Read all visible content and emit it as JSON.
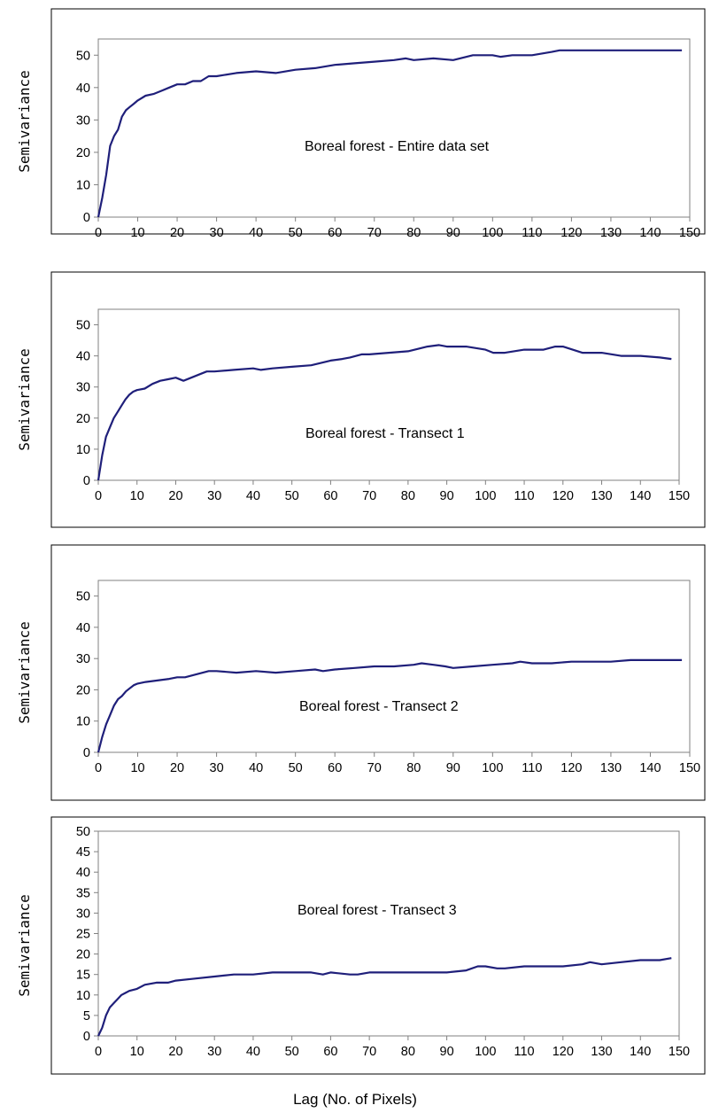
{
  "figure": {
    "xlabel": "Lag (No. of Pixels)"
  },
  "chart_data": [
    {
      "type": "line",
      "title": "Boreal forest - Entire data set",
      "ylabel": "Semivariance",
      "xlim": [
        0,
        150
      ],
      "ylim": [
        0,
        55
      ],
      "xticks": [
        0,
        10,
        20,
        30,
        40,
        50,
        60,
        70,
        80,
        90,
        100,
        110,
        120,
        130,
        140,
        150
      ],
      "yticks": [
        0,
        10,
        20,
        30,
        40,
        50
      ],
      "grid": false,
      "color": "#1f1f7a",
      "x": [
        0,
        1,
        2,
        3,
        4,
        5,
        6,
        7,
        8,
        9,
        10,
        12,
        14,
        16,
        18,
        20,
        22,
        24,
        26,
        28,
        30,
        35,
        40,
        45,
        50,
        55,
        60,
        65,
        70,
        75,
        78,
        80,
        85,
        90,
        95,
        100,
        102,
        105,
        110,
        115,
        117,
        120,
        125,
        130,
        135,
        140,
        145,
        148
      ],
      "y": [
        0,
        6,
        13,
        22,
        25,
        27,
        31,
        33,
        34,
        35,
        36,
        37.5,
        38,
        39,
        40,
        41,
        41,
        42,
        42,
        43.5,
        43.5,
        44.5,
        45,
        44.5,
        45.5,
        46,
        47,
        47.5,
        48,
        48.5,
        49,
        48.5,
        49,
        48.5,
        50,
        50,
        49.5,
        50,
        50,
        51,
        51.5,
        51.5,
        51.5,
        51.5,
        51.5,
        51.5,
        51.5,
        51.5
      ]
    },
    {
      "type": "line",
      "title": "Boreal forest - Transect 1",
      "ylabel": "Semivariance",
      "xlim": [
        0,
        150
      ],
      "ylim": [
        0,
        55
      ],
      "xticks": [
        0,
        10,
        20,
        30,
        40,
        50,
        60,
        70,
        80,
        90,
        100,
        110,
        120,
        130,
        140,
        150
      ],
      "yticks": [
        0,
        10,
        20,
        30,
        40,
        50
      ],
      "grid": false,
      "color": "#1f1f7a",
      "x": [
        0,
        1,
        2,
        3,
        4,
        5,
        6,
        7,
        8,
        9,
        10,
        12,
        14,
        16,
        18,
        20,
        22,
        24,
        26,
        28,
        30,
        35,
        40,
        42,
        45,
        50,
        55,
        60,
        63,
        65,
        68,
        70,
        75,
        80,
        85,
        88,
        90,
        95,
        100,
        102,
        105,
        110,
        115,
        118,
        120,
        125,
        130,
        135,
        140,
        145,
        148
      ],
      "y": [
        0,
        8,
        14,
        17,
        20,
        22,
        24,
        26,
        27.5,
        28.5,
        29,
        29.5,
        31,
        32,
        32.5,
        33,
        32,
        33,
        34,
        35,
        35,
        35.5,
        36,
        35.5,
        36,
        36.5,
        37,
        38.5,
        39,
        39.5,
        40.5,
        40.5,
        41,
        41.5,
        43,
        43.5,
        43,
        43,
        42,
        41,
        41,
        42,
        42,
        43,
        43,
        41,
        41,
        40,
        40,
        39.5,
        39
      ]
    },
    {
      "type": "line",
      "title": "Boreal forest - Transect 2",
      "ylabel": "Semivariance",
      "xlim": [
        0,
        150
      ],
      "ylim": [
        0,
        55
      ],
      "xticks": [
        0,
        10,
        20,
        30,
        40,
        50,
        60,
        70,
        80,
        90,
        100,
        110,
        120,
        130,
        140,
        150
      ],
      "yticks": [
        0,
        10,
        20,
        30,
        40,
        50
      ],
      "grid": false,
      "color": "#1f1f7a",
      "x": [
        0,
        1,
        2,
        3,
        4,
        5,
        6,
        7,
        8,
        9,
        10,
        12,
        15,
        18,
        20,
        22,
        25,
        28,
        30,
        35,
        40,
        45,
        50,
        55,
        57,
        60,
        65,
        70,
        75,
        80,
        82,
        85,
        88,
        90,
        95,
        100,
        105,
        107,
        110,
        115,
        120,
        125,
        130,
        135,
        140,
        148
      ],
      "y": [
        0,
        5,
        9,
        12,
        15,
        17,
        18,
        19.5,
        20.5,
        21.5,
        22,
        22.5,
        23,
        23.5,
        24,
        24,
        25,
        26,
        26,
        25.5,
        26,
        25.5,
        26,
        26.5,
        26,
        26.5,
        27,
        27.5,
        27.5,
        28,
        28.5,
        28,
        27.5,
        27,
        27.5,
        28,
        28.5,
        29,
        28.5,
        28.5,
        29,
        29,
        29,
        29.5,
        29.5,
        29.5
      ]
    },
    {
      "type": "line",
      "title": "Boreal forest - Transect 3",
      "ylabel": "Semivariance",
      "xlim": [
        0,
        150
      ],
      "ylim": [
        0,
        50
      ],
      "xticks": [
        0,
        10,
        20,
        30,
        40,
        50,
        60,
        70,
        80,
        90,
        100,
        110,
        120,
        130,
        140,
        150
      ],
      "yticks": [
        0,
        5,
        10,
        15,
        20,
        25,
        30,
        35,
        40,
        45,
        50
      ],
      "grid": false,
      "color": "#1f1f7a",
      "x": [
        0,
        1,
        2,
        3,
        4,
        5,
        6,
        7,
        8,
        10,
        12,
        15,
        18,
        20,
        25,
        30,
        35,
        40,
        45,
        50,
        55,
        58,
        60,
        65,
        67,
        70,
        75,
        80,
        85,
        90,
        95,
        98,
        100,
        103,
        105,
        110,
        115,
        120,
        125,
        127,
        130,
        135,
        140,
        145,
        148
      ],
      "y": [
        0,
        2,
        5,
        7,
        8,
        9,
        10,
        10.5,
        11,
        11.5,
        12.5,
        13,
        13,
        13.5,
        14,
        14.5,
        15,
        15,
        15.5,
        15.5,
        15.5,
        15,
        15.5,
        15,
        15,
        15.5,
        15.5,
        15.5,
        15.5,
        15.5,
        16,
        17,
        17,
        16.5,
        16.5,
        17,
        17,
        17,
        17.5,
        18,
        17.5,
        18,
        18.5,
        18.5,
        19
      ]
    }
  ]
}
